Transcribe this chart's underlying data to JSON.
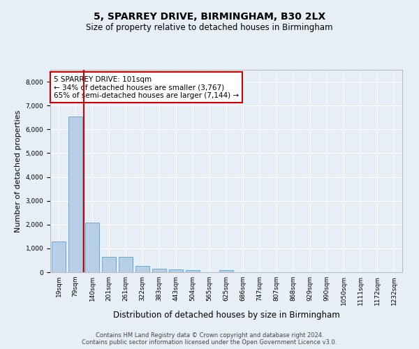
{
  "title1": "5, SPARREY DRIVE, BIRMINGHAM, B30 2LX",
  "title2": "Size of property relative to detached houses in Birmingham",
  "xlabel": "Distribution of detached houses by size in Birmingham",
  "ylabel": "Number of detached properties",
  "footnote1": "Contains HM Land Registry data © Crown copyright and database right 2024.",
  "footnote2": "Contains public sector information licensed under the Open Government Licence v3.0.",
  "categories": [
    "19sqm",
    "79sqm",
    "140sqm",
    "201sqm",
    "261sqm",
    "322sqm",
    "383sqm",
    "443sqm",
    "504sqm",
    "565sqm",
    "625sqm",
    "686sqm",
    "747sqm",
    "807sqm",
    "868sqm",
    "929sqm",
    "990sqm",
    "1050sqm",
    "1111sqm",
    "1172sqm",
    "1232sqm"
  ],
  "values": [
    1300,
    6550,
    2080,
    650,
    650,
    260,
    140,
    110,
    80,
    0,
    80,
    0,
    0,
    0,
    0,
    0,
    0,
    0,
    0,
    0,
    0
  ],
  "bar_color": "#b8cfe8",
  "bar_edge_color": "#6aaad4",
  "subject_line_color": "#cc0000",
  "annotation_line1": "5 SPARREY DRIVE: 101sqm",
  "annotation_line2": "← 34% of detached houses are smaller (3,767)",
  "annotation_line3": "65% of semi-detached houses are larger (7,144) →",
  "annotation_box_color": "#cc0000",
  "ylim_max": 8500,
  "yticks": [
    0,
    1000,
    2000,
    3000,
    4000,
    5000,
    6000,
    7000,
    8000
  ],
  "bg_color": "#e8eef5",
  "plot_bg_color": "#e8eef5",
  "grid_color": "#ffffff",
  "title1_fontsize": 10,
  "title2_fontsize": 8.5,
  "ylabel_fontsize": 8,
  "xlabel_fontsize": 8.5,
  "tick_fontsize": 6.5,
  "annotation_fontsize": 7.5,
  "footnote_fontsize": 6
}
